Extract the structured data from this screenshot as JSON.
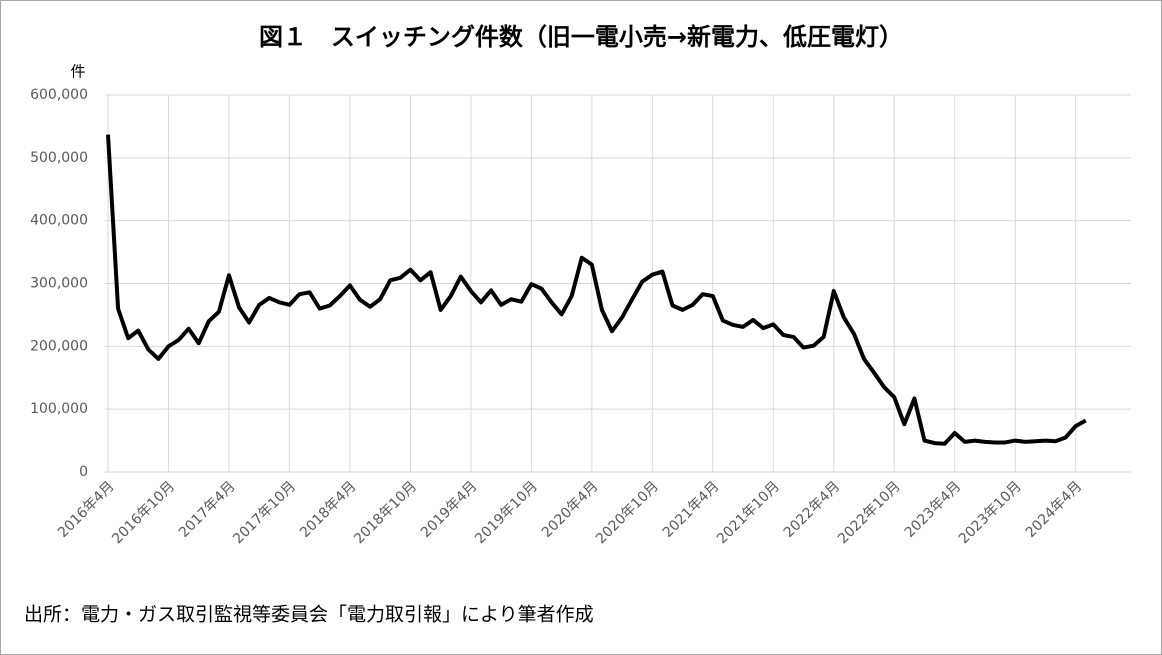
{
  "chart_data": {
    "type": "line",
    "title": "図１　スイッチング件数（旧一電小売→新電力、低圧電灯）",
    "y_unit": "件",
    "source": "出所：電力・ガス取引監視等委員会「電力取引報」により筆者作成",
    "categories": [
      "2016年4月",
      null,
      null,
      null,
      null,
      null,
      "2016年10月",
      null,
      null,
      null,
      null,
      null,
      "2017年4月",
      null,
      null,
      null,
      null,
      null,
      "2017年10月",
      null,
      null,
      null,
      null,
      null,
      "2018年4月",
      null,
      null,
      null,
      null,
      null,
      "2018年10月",
      null,
      null,
      null,
      null,
      null,
      "2019年4月",
      null,
      null,
      null,
      null,
      null,
      "2019年10月",
      null,
      null,
      null,
      null,
      null,
      "2020年4月",
      null,
      null,
      null,
      null,
      null,
      "2020年10月",
      null,
      null,
      null,
      null,
      null,
      "2021年4月",
      null,
      null,
      null,
      null,
      null,
      "2021年10月",
      null,
      null,
      null,
      null,
      null,
      "2022年4月",
      null,
      null,
      null,
      null,
      null,
      "2022年10月",
      null,
      null,
      null,
      null,
      null,
      "2023年4月",
      null,
      null,
      null,
      null,
      null,
      "2023年10月",
      null,
      null,
      null,
      null,
      null,
      "2024年4月",
      null
    ],
    "series": [
      {
        "color": "#000000",
        "values": [
          537000,
          260000,
          213000,
          225000,
          195000,
          180000,
          200000,
          210000,
          228000,
          205000,
          240000,
          255000,
          313000,
          262000,
          238000,
          266000,
          277000,
          270000,
          266000,
          283000,
          286000,
          260000,
          265000,
          280000,
          297000,
          274000,
          263000,
          275000,
          305000,
          309000,
          322000,
          305000,
          318000,
          258000,
          280000,
          311000,
          288000,
          270000,
          289000,
          266000,
          275000,
          271000,
          299000,
          292000,
          270000,
          251000,
          280000,
          341000,
          330000,
          258000,
          224000,
          246000,
          275000,
          303000,
          314000,
          319000,
          265000,
          258000,
          266000,
          283000,
          280000,
          241000,
          234000,
          231000,
          242000,
          229000,
          235000,
          218000,
          215000,
          198000,
          201000,
          215000,
          288000,
          246000,
          220000,
          180000,
          158000,
          135000,
          119000,
          76000,
          117000,
          50000,
          46000,
          45000,
          62000,
          48000,
          50000,
          48000,
          47000,
          47000,
          50000,
          48000,
          49000,
          50000,
          49000,
          55000,
          73000,
          82000
        ]
      }
    ],
    "ylim": [
      0,
      600000
    ],
    "yticks": [
      0,
      {
        "value": 100000,
        "label": "100,000"
      },
      {
        "value": 200000,
        "label": "200,000"
      },
      {
        "value": 300000,
        "label": "300,000"
      },
      {
        "value": 400000,
        "label": "400,000"
      },
      {
        "value": 500000,
        "label": "500,000"
      },
      {
        "value": 600000,
        "label": "600,000"
      }
    ],
    "grid": true
  }
}
